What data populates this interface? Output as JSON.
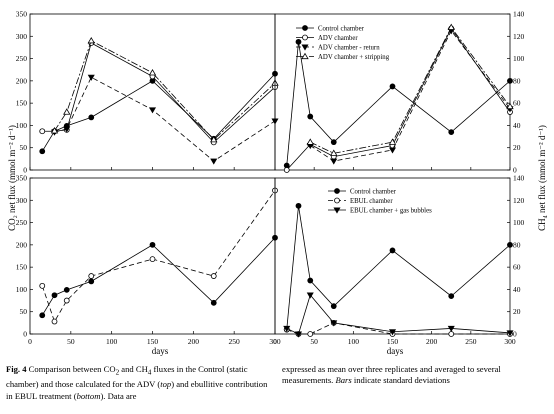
{
  "figure": {
    "y_left_label": "CO₂ net flux (mmol m⁻² d⁻¹)",
    "y_right_label": "CH₄ net flux (mmol m⁻² d⁻¹)",
    "x_label_bottom_left": "days",
    "x_label_bottom_right": "days"
  },
  "chart_data": [
    {
      "type": "line",
      "panel": "top-left",
      "ylim": [
        0,
        350
      ],
      "yticks": [
        "0",
        "50",
        "100",
        "150",
        "200",
        "250",
        "300",
        "350"
      ],
      "xlim": [
        0,
        300
      ],
      "series": [
        {
          "name": "Control chamber",
          "marker": "filled-circle",
          "dash": "solid",
          "x": [
            15,
            30,
            45,
            75,
            150,
            225,
            300
          ],
          "y": [
            42,
            87,
            99,
            118,
            200,
            70,
            216
          ]
        },
        {
          "name": "ADV chamber",
          "marker": "open-circle",
          "dash": "solid",
          "x": [
            15,
            30,
            45,
            75,
            150,
            225,
            300
          ],
          "y": [
            87,
            87,
            90,
            285,
            210,
            62,
            186
          ]
        },
        {
          "name": "ADV chamber - return",
          "marker": "filled-triangle-down",
          "dash": "dashed",
          "x": [
            30,
            45,
            75,
            150,
            225,
            300
          ],
          "y": [
            85,
            92,
            208,
            135,
            20,
            110
          ]
        },
        {
          "name": "ADV chamber + stripping",
          "marker": "open-triangle-up",
          "dash": "dashdot",
          "x": [
            30,
            45,
            75,
            150,
            225,
            300
          ],
          "y": [
            88,
            130,
            290,
            218,
            68,
            195
          ]
        }
      ]
    },
    {
      "type": "line",
      "panel": "top-right",
      "ylim": [
        0,
        140
      ],
      "yticks": [
        "0",
        "20",
        "40",
        "60",
        "80",
        "100",
        "120",
        "140"
      ],
      "xlim": [
        0,
        300
      ],
      "legend_position": "top-right",
      "series": [
        {
          "name": "Control chamber",
          "marker": "filled-circle",
          "dash": "solid",
          "x": [
            15,
            30,
            45,
            75,
            150,
            225,
            300
          ],
          "y": [
            4,
            115,
            48,
            25,
            75,
            34,
            80
          ]
        },
        {
          "name": "ADV chamber",
          "marker": "open-circle",
          "dash": "solid",
          "x": [
            15,
            45,
            75,
            150,
            225,
            300
          ],
          "y": [
            0,
            23,
            12,
            22,
            127,
            52
          ]
        },
        {
          "name": "ADV chamber - return",
          "marker": "filled-triangle-down",
          "dash": "dashed",
          "x": [
            45,
            75,
            150,
            225,
            300
          ],
          "y": [
            22,
            8,
            18,
            125,
            55
          ]
        },
        {
          "name": "ADV chamber + stripping",
          "marker": "open-triangle-up",
          "dash": "dashdot",
          "x": [
            45,
            75,
            150,
            225,
            300
          ],
          "y": [
            25,
            15,
            25,
            128,
            57
          ]
        }
      ]
    },
    {
      "type": "line",
      "panel": "bottom-left",
      "ylim": [
        0,
        350
      ],
      "yticks": [
        "0",
        "50",
        "100",
        "150",
        "200",
        "250",
        "300",
        "350"
      ],
      "xlim": [
        0,
        300
      ],
      "xticks": [
        "0",
        "50",
        "100",
        "150",
        "200",
        "250",
        "300"
      ],
      "series": [
        {
          "name": "Control chamber",
          "marker": "filled-circle",
          "dash": "solid",
          "x": [
            15,
            30,
            45,
            75,
            150,
            225,
            300
          ],
          "y": [
            42,
            87,
            99,
            118,
            200,
            70,
            216
          ]
        },
        {
          "name": "EBUL chamber",
          "marker": "open-circle",
          "dash": "dashed",
          "x": [
            15,
            30,
            45,
            75,
            150,
            225,
            300
          ],
          "y": [
            108,
            28,
            75,
            130,
            168,
            130,
            322
          ]
        }
      ]
    },
    {
      "type": "line",
      "panel": "bottom-right",
      "ylim": [
        0,
        140
      ],
      "yticks": [
        "0",
        "20",
        "40",
        "60",
        "80",
        "100",
        "120",
        "140"
      ],
      "xlim": [
        0,
        300
      ],
      "xticks": [
        "0",
        "50",
        "100",
        "150",
        "200",
        "250",
        "300"
      ],
      "legend_position": "top-right",
      "series": [
        {
          "name": "Control chamber",
          "marker": "filled-circle",
          "dash": "solid",
          "x": [
            15,
            30,
            45,
            75,
            150,
            225,
            300
          ],
          "y": [
            4,
            115,
            48,
            25,
            75,
            34,
            80
          ]
        },
        {
          "name": "EBUL chamber",
          "marker": "open-circle",
          "dash": "dashed",
          "x": [
            15,
            30,
            45,
            75,
            150,
            225,
            300
          ],
          "y": [
            4,
            0,
            0,
            10,
            0,
            0,
            0
          ]
        },
        {
          "name": "EBUL chamber + gas bubbles",
          "marker": "filled-triangle-down",
          "dash": "solid",
          "x": [
            15,
            30,
            45,
            75,
            150,
            225,
            300
          ],
          "y": [
            5,
            0,
            35,
            10,
            2,
            5,
            1
          ]
        }
      ]
    }
  ],
  "caption": {
    "fig_label": "Fig. 4",
    "left_text_a": " Comparison between CO",
    "sub_2a": "2",
    "left_text_b": " and CH",
    "sub_4": "4",
    "left_text_c": " fluxes in the Control (static chamber) and those calculated for the ADV (",
    "top_word": "top",
    "left_text_d": ") and ebullitive contribution in EBUL treatment (",
    "bottom_word": "bottom",
    "left_text_e": "). Data are",
    "right_text_a": "expressed as mean over three replicates and averaged to several measurements. ",
    "bars_word": "Bars",
    "right_text_b": " indicate standard deviations"
  }
}
